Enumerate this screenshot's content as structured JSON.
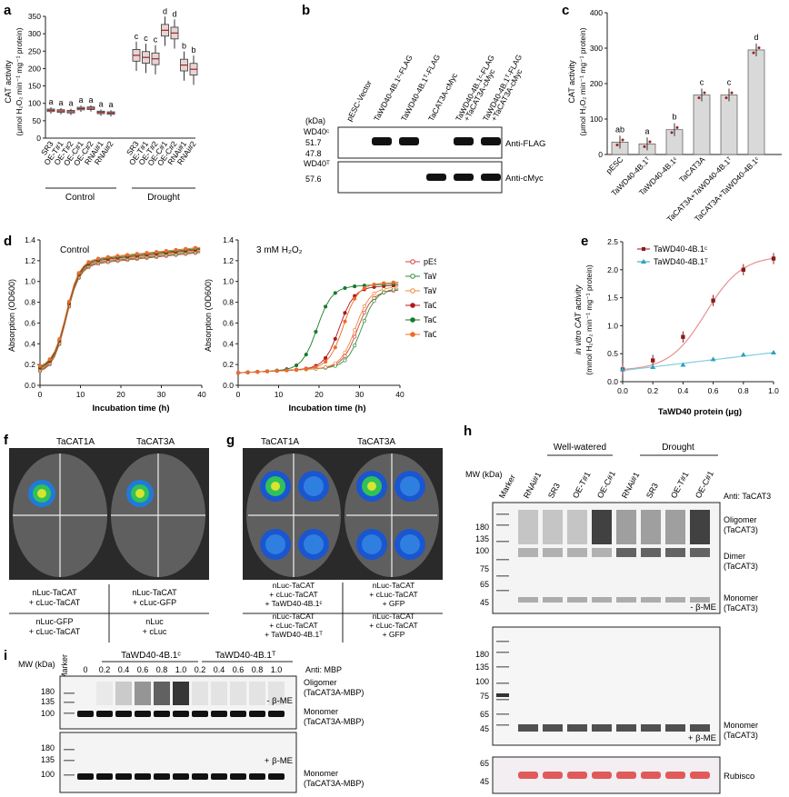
{
  "panels": {
    "a": {
      "letter": "a",
      "ylabel_line1": "CAT activity",
      "ylabel_line2": "(μmol H₂O₂ min⁻¹ mg⁻¹ protein)",
      "yticks": [
        "0",
        "50",
        "100",
        "150",
        "200",
        "250",
        "300",
        "350"
      ],
      "categories": [
        "SR3",
        "OE-T#1",
        "OE-T#2",
        "OE-C#1",
        "OE-C#2",
        "RNAi#1",
        "RNAi#2"
      ],
      "groups": [
        "Control",
        "Drought"
      ],
      "letters_control": [
        "a",
        "a",
        "a",
        "a",
        "a",
        "a",
        "a"
      ],
      "letters_drought": [
        "c",
        "c",
        "c",
        "d",
        "d",
        "b",
        "b"
      ]
    },
    "b": {
      "letter": "b",
      "columns": [
        "pESC-Vector",
        "TaWD40-4B.1ᶜ-FLAG",
        "TaWD40-4B.1ᵀ-FLAG",
        "TaCAT3A-cMyc",
        "TaWD40-4B.1ᶜ-FLAG +TaCAT3A-cMyc",
        "TaWD40-4B.1ᵀ-FLAG +TaCAT3A-cMyc"
      ],
      "kda": "(kDa)",
      "wd40c": "WD40ᶜ",
      "wd40t": "WD40ᵀ",
      "mw1": [
        "51.7",
        "47.8"
      ],
      "mw2": "57.6",
      "blot1": "Anti-FLAG",
      "blot2": "Anti-cMyc"
    },
    "c": {
      "letter": "c",
      "ylabel_line1": "CAT activity",
      "ylabel_line2": "(μmol H₂O₂ min⁻¹ mg⁻¹ protein)",
      "yticks": [
        "0",
        "100",
        "200",
        "300",
        "400"
      ],
      "categories": [
        "pESC",
        "TaWD40-4B.1ᵀ",
        "TaWD40-4B.1ᶜ",
        "TaCAT3A",
        "TaCAT3A+TaWD40-4B.1ᵀ",
        "TaCAT3A+TaWD40-4B.1ᶜ"
      ],
      "letters": [
        "ab",
        "a",
        "b",
        "c",
        "c",
        "d"
      ]
    },
    "d": {
      "letter": "d",
      "left_title": "Control",
      "right_title": "3 mM H₂O₂",
      "ylabel": "Absorption (OD600)",
      "xlabel": "Incubation time (h)",
      "yticks": [
        "0.0",
        "0.2",
        "0.4",
        "0.6",
        "0.8",
        "1.0",
        "1.2",
        "1.4"
      ],
      "xticks": [
        "0",
        "10",
        "20",
        "30",
        "40"
      ],
      "legend": [
        "pESC",
        "TaWD40-4B.1ᶜ",
        "TaWD40-4B.1ᵀ",
        "TaCAT3A",
        "TaCAT3A+TaWD40-4B.1ᶜ",
        "TaCAT3A+TaWD40-4B.1ᵀ"
      ]
    },
    "e": {
      "letter": "e",
      "ylabel_line1": "in vitro CAT activity",
      "ylabel_line2": "(mmol H₂O₂ min⁻¹ mg⁻¹ protein)",
      "xlabel": "TaWD40 protein (μg)",
      "yticks": [
        "0.0",
        "0.5",
        "1.0",
        "1.5",
        "2.0",
        "2.5"
      ],
      "xticks": [
        "0.0",
        "0.2",
        "0.4",
        "0.6",
        "0.8",
        "1.0"
      ],
      "legend": [
        "TaWD40-4B.1ᶜ",
        "TaWD40-4B.1ᵀ"
      ]
    },
    "f": {
      "letter": "f",
      "titles": [
        "TaCAT1A",
        "TaCAT3A"
      ],
      "cells": [
        "nLuc-TaCAT\n+ cLuc-TaCAT",
        "nLuc-TaCAT\n+ cLuc-GFP",
        "nLuc-GFP\n+ cLuc-TaCAT",
        "nLuc\n+ cLuc"
      ]
    },
    "g": {
      "letter": "g",
      "titles": [
        "TaCAT1A",
        "TaCAT3A"
      ],
      "cells": [
        "nLuc-TaCAT\n+ cLuc-TaCAT\n+ TaWD40-4B.1ᶜ",
        "nLuc-TaCAT\n+ cLuc-TaCAT\n+ GFP",
        "nLuc-TaCAT\n+ cLuc-TaCAT\n+ TaWD40-4B.1ᵀ",
        "nLuc-TaCAT\n+ cLuc-TaCAT\n+ GFP"
      ]
    },
    "h": {
      "letter": "h",
      "group1": "Well-watered",
      "group2": "Drought",
      "lanes": [
        "Marker",
        "RNAi#1",
        "SR3",
        "OE-T#1",
        "OE-C#1",
        "RNAi#1",
        "SR3",
        "OE-T#1",
        "OE-C#1"
      ],
      "mw_label": "MW\n(kDa)",
      "antibody": "Anti: TaCAT3",
      "mw_top": [
        "180",
        "135",
        "100",
        "75",
        "65",
        "45"
      ],
      "mw_mid": [
        "180",
        "135",
        "100",
        "75",
        "65",
        "45"
      ],
      "mw_bot": [
        "65",
        "45"
      ],
      "oligomer": "Oligomer\n(TaCAT3)",
      "dimer": "Dimer\n(TaCAT3)",
      "monomer": "Monomer\n(TaCAT3)",
      "minus_bme": "- β-ME",
      "plus_bme": "+ β-ME",
      "rubisco": "Rubisco"
    },
    "i": {
      "letter": "i",
      "mw_label": "MW\n(kDa)",
      "marker": "Marker",
      "group1": "TaWD40-4B.1ᶜ",
      "group2": "TaWD40-4B.1ᵀ",
      "antibody": "Anti: MBP",
      "amounts": [
        "0",
        "0.2",
        "0.4",
        "0.6",
        "0.8",
        "1.0",
        "0.2",
        "0.4",
        "0.6",
        "0.8",
        "1.0"
      ],
      "mw_ticks": [
        "180",
        "135",
        "100"
      ],
      "oligomer": "Oligomer\n(TaCAT3A-MBP)",
      "monomer": "Monomer\n(TaCAT3A-MBP)",
      "minus_bme": "- β-ME",
      "plus_bme": "+ β-ME"
    }
  }
}
